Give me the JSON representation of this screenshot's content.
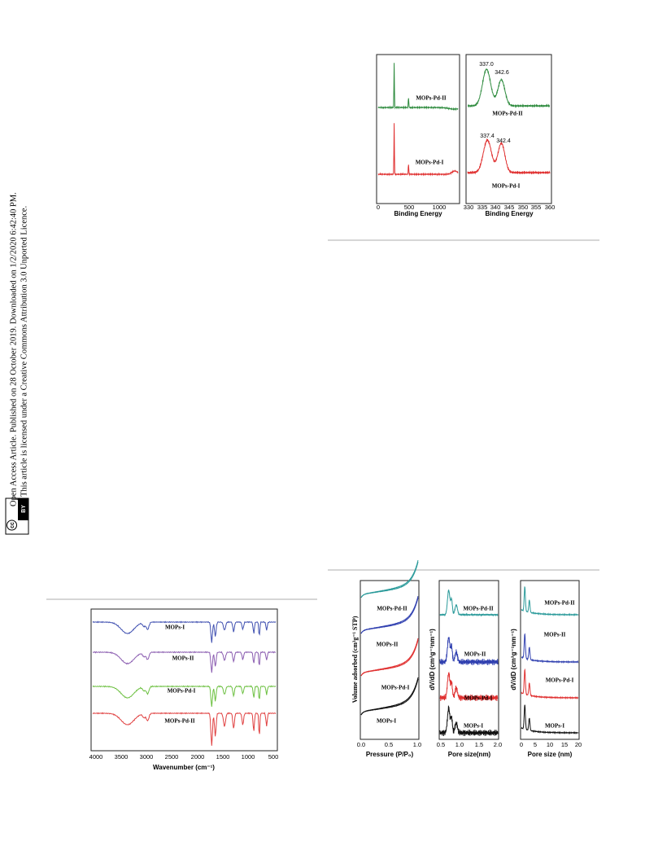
{
  "sidebar": {
    "line1": "Open Access Article. Published on 28 October 2019. Downloaded on 1/2/2020 6:42:40 PM.",
    "line2": "This article is licensed under a Creative Commons Attribution 3.0 Unported Licence.",
    "badge_cc": "cc",
    "badge_by": "BY"
  },
  "figures": [
    {
      "panels": [
        {
          "x_ticks": [
            "0",
            "500",
            "1000"
          ],
          "x_label": "Binding Energy",
          "series_labels": [
            "MOPs-Pd-II",
            "MOPs-Pd-I"
          ]
        },
        {
          "x_ticks": [
            "330",
            "335",
            "340",
            "345",
            "350",
            "355",
            "360"
          ],
          "x_label": "Binding Energy",
          "series_labels": [
            "MOPs-Pd-II",
            "MOPs-Pd-I"
          ],
          "peak_labels": [
            "337.0",
            "342.6",
            "337.4",
            "342.4"
          ]
        }
      ]
    },
    {
      "panels": [
        {
          "x_ticks": [
            "4000",
            "3500",
            "3000",
            "2500",
            "2000",
            "1500",
            "1000",
            "500"
          ],
          "x_label": "Wavenumber (cm⁻¹)",
          "series_labels": [
            "MOPs-I",
            "MOPs-II",
            "MOPs-Pd-I",
            "MOPs-Pd-II"
          ]
        }
      ]
    },
    {
      "panels": [
        {
          "x_ticks": [
            "0.0",
            "0.5",
            "1.0"
          ],
          "x_label": "Pressure (P/P₀)",
          "y_label": "Volume adsorbed (cm³g⁻¹ STP)",
          "series_labels": [
            "MOPs-Pd-II",
            "MOPs-II",
            "MOPs-Pd-I",
            "MOPs-I"
          ]
        },
        {
          "x_ticks": [
            "0.5",
            "1.0",
            "1.5",
            "2.0"
          ],
          "x_label": "Pore size(nm)",
          "y_label": "dV/dD (cm³g⁻¹nm⁻¹)",
          "series_labels": [
            "MOPs-Pd-II",
            "MOPs-II",
            "MOPs-Pd-I",
            "MOPs-I"
          ]
        },
        {
          "x_ticks": [
            "0",
            "5",
            "10",
            "15",
            "20"
          ],
          "x_label": "Pore size (nm)",
          "y_label": "dV/dD (cm³g⁻¹nm⁻¹)",
          "series_labels": [
            "MOPs-Pd-II",
            "MOPs-II",
            "MOPs-Pd-I",
            "MOPs-I"
          ]
        }
      ]
    }
  ]
}
